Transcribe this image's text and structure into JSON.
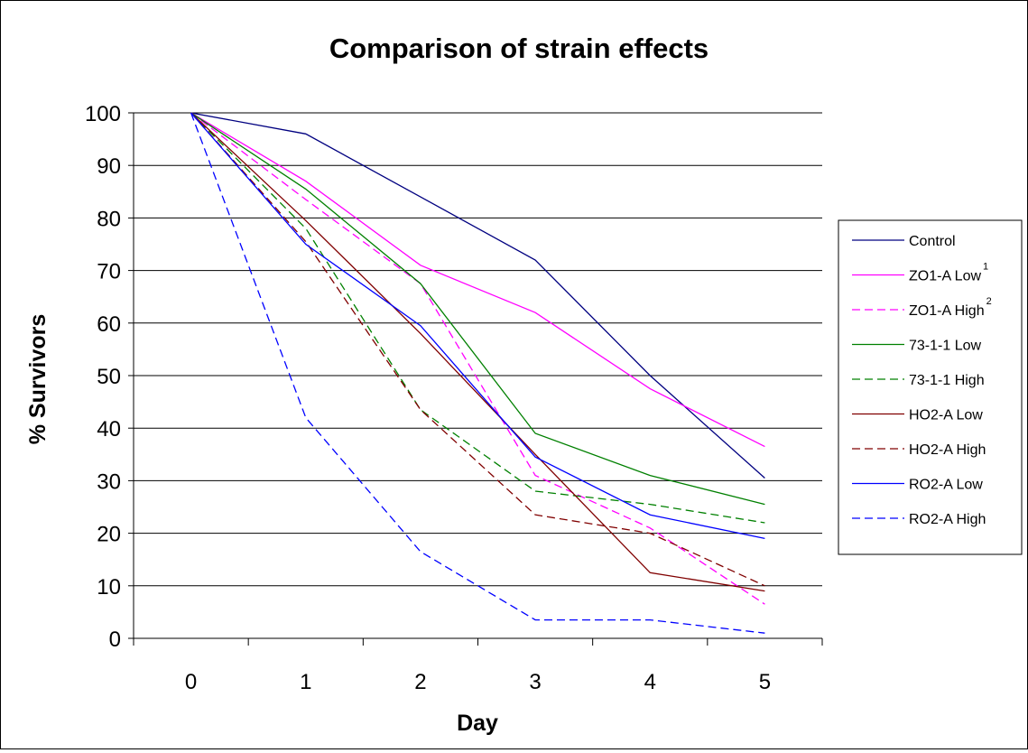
{
  "chart_data": {
    "type": "line",
    "title": "Comparison of strain effects",
    "xlabel": "Day",
    "ylabel": "% Survivors",
    "x": [
      0,
      1,
      2,
      3,
      4,
      5
    ],
    "ylim": [
      0,
      100
    ],
    "yticks": [
      "0",
      "10",
      "20",
      "30",
      "40",
      "50",
      "60",
      "70",
      "80",
      "90",
      "100"
    ],
    "xticks": [
      "0",
      "1",
      "2",
      "3",
      "4",
      "5"
    ],
    "grid": "horizontal",
    "legend_position": "right",
    "series": [
      {
        "name": "Control",
        "sup": "",
        "color": "#000080",
        "dash": "solid",
        "values": [
          100,
          96,
          84,
          72,
          50,
          30.5
        ]
      },
      {
        "name": "ZO1-A Low",
        "sup": "1",
        "color": "#ff00ff",
        "dash": "solid",
        "values": [
          100,
          87,
          71,
          62,
          47.5,
          36.5
        ]
      },
      {
        "name": "ZO1-A High",
        "sup": "2",
        "color": "#ff00ff",
        "dash": "dashed",
        "values": [
          100,
          83.5,
          67.5,
          31,
          21,
          6.5
        ]
      },
      {
        "name": "73-1-1 Low",
        "sup": "",
        "color": "#008000",
        "dash": "solid",
        "values": [
          100,
          85.5,
          67.5,
          39,
          31,
          25.5
        ]
      },
      {
        "name": "73-1-1 High",
        "sup": "",
        "color": "#008000",
        "dash": "dashed",
        "values": [
          100,
          78,
          43.5,
          28,
          25.5,
          22
        ]
      },
      {
        "name": "HO2-A Low",
        "sup": "",
        "color": "#800000",
        "dash": "solid",
        "values": [
          100,
          79.5,
          58,
          35,
          12.5,
          9
        ]
      },
      {
        "name": "HO2-A High",
        "sup": "",
        "color": "#800000",
        "dash": "dashed",
        "values": [
          100,
          75.5,
          43.5,
          23.5,
          20,
          10
        ]
      },
      {
        "name": "RO2-A Low",
        "sup": "",
        "color": "#0000ff",
        "dash": "solid",
        "values": [
          100,
          75,
          59.5,
          34.5,
          23.5,
          19
        ]
      },
      {
        "name": "RO2-A High",
        "sup": "",
        "color": "#0000ff",
        "dash": "dashed",
        "values": [
          100,
          42,
          16.5,
          3.5,
          3.5,
          1
        ]
      }
    ]
  }
}
